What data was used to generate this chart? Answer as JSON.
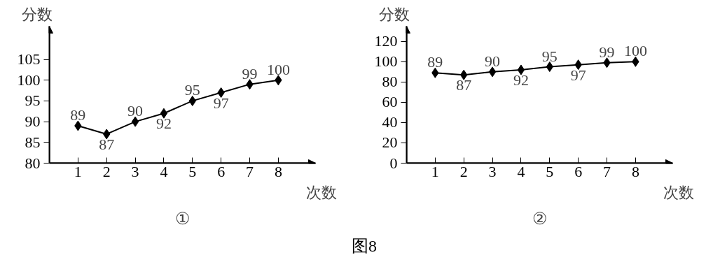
{
  "chart_data": [
    {
      "type": "line",
      "title": "①",
      "xlabel": "次数",
      "ylabel": "分数",
      "categories": [
        "1",
        "2",
        "3",
        "4",
        "5",
        "6",
        "7",
        "8"
      ],
      "values": [
        89,
        87,
        90,
        92,
        95,
        97,
        99,
        100
      ],
      "color": "#000000",
      "ylim": [
        80,
        113
      ],
      "yticks": [
        80,
        85,
        90,
        95,
        100,
        105
      ],
      "marker": "diamond",
      "line_style": "solid",
      "data_labels": true,
      "grid": false,
      "annotations": [
        "图8"
      ]
    },
    {
      "type": "line",
      "title": "②",
      "xlabel": "次数",
      "ylabel": "分数",
      "categories": [
        "1",
        "2",
        "3",
        "4",
        "5",
        "6",
        "7",
        "8"
      ],
      "values": [
        89,
        87,
        90,
        92,
        95,
        97,
        99,
        100
      ],
      "color": "#000000",
      "ylim": [
        0,
        135
      ],
      "yticks": [
        0,
        20,
        40,
        60,
        80,
        100,
        120
      ],
      "marker": "diamond",
      "line_style": "solid",
      "data_labels": true,
      "grid": false
    }
  ]
}
